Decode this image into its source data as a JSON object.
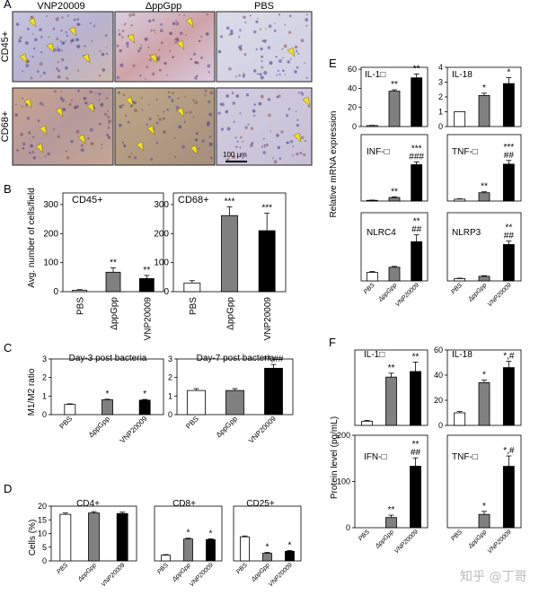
{
  "panel_letters": [
    "A",
    "B",
    "C",
    "D",
    "E",
    "F"
  ],
  "section_A": {
    "col_labels": [
      "VNP20009",
      "ΔppGpp",
      "PBS"
    ],
    "row_labels": [
      "CD45+",
      "CD68+"
    ],
    "scale_bar": "100 μm"
  },
  "shared": {
    "groups": [
      "PBS",
      "ΔppGpp",
      "VNP20009"
    ],
    "colors": {
      "PBS": "#ffffff",
      "ΔppGpp": "#808080",
      "VNP20009": "#000000"
    }
  },
  "y_labels": {
    "B": "Avg. number of cells/field",
    "C": "M1/M2 ratio",
    "D": "Cells (%)",
    "E": "Relative mRNA expression",
    "F": "Protein level (pg/mL)"
  },
  "chart_data": [
    {
      "id": "B1",
      "type": "bar",
      "title": "CD45+",
      "categories": [
        "PBS",
        "ΔppGpp",
        "VNP20009"
      ],
      "values": [
        5,
        67,
        45
      ],
      "errors": [
        2,
        15,
        11
      ],
      "sig": [
        "",
        "**",
        "**"
      ],
      "yticks": [
        0,
        100,
        200,
        300
      ],
      "ylim": [
        0,
        340
      ]
    },
    {
      "id": "B2",
      "type": "bar",
      "title": "CD68+",
      "categories": [
        "PBS",
        "ΔppGpp",
        "VNP20009"
      ],
      "values": [
        30,
        262,
        210
      ],
      "errors": [
        8,
        30,
        60
      ],
      "sig": [
        "",
        "***",
        "***"
      ],
      "yticks": [
        0,
        100,
        200,
        300
      ],
      "ylim": [
        0,
        340
      ]
    },
    {
      "id": "C1",
      "type": "bar",
      "title": "Day-3 post bacteria",
      "categories": [
        "PBS",
        "ΔppGpp",
        "VNP20009"
      ],
      "values": [
        0.55,
        0.8,
        0.78
      ],
      "errors": [
        0.03,
        0.03,
        0.04
      ],
      "sig": [
        "",
        "*",
        "*"
      ],
      "yticks": [
        0,
        1,
        2,
        3
      ],
      "ylim": [
        0,
        3
      ]
    },
    {
      "id": "C2",
      "type": "bar",
      "title": "Day-7 post bacteria",
      "categories": [
        "PBS",
        "ΔppGpp",
        "VNP20009"
      ],
      "values": [
        1.3,
        1.3,
        2.5
      ],
      "errors": [
        0.1,
        0.1,
        0.2
      ],
      "sig": [
        "",
        "",
        "**,##"
      ],
      "yticks": [
        0,
        1,
        2,
        3
      ],
      "ylim": [
        0,
        3
      ]
    },
    {
      "id": "D1",
      "type": "bar",
      "title": "CD4+",
      "categories": [
        "PBS",
        "ΔppGpp",
        "VNP20009"
      ],
      "values": [
        17,
        17.5,
        17.3
      ],
      "errors": [
        0.5,
        0.5,
        0.5
      ],
      "sig": [
        "",
        "",
        ""
      ],
      "yticks": [
        0,
        5,
        10,
        15,
        20
      ],
      "ylim": [
        0,
        20
      ]
    },
    {
      "id": "D2",
      "type": "bar",
      "title": "CD8+",
      "categories": [
        "PBS",
        "ΔppGpp",
        "VNP20009"
      ],
      "values": [
        2.1,
        8,
        7.8
      ],
      "errors": [
        0.2,
        0.3,
        0.3
      ],
      "sig": [
        "",
        "*",
        "*"
      ],
      "yticks": [],
      "ylim": [
        0,
        20
      ]
    },
    {
      "id": "D3",
      "type": "bar",
      "title": "CD25+",
      "categories": [
        "PBS",
        "ΔppGpp",
        "VNP20009"
      ],
      "values": [
        8.8,
        2.8,
        3.5
      ],
      "errors": [
        0.3,
        0.3,
        0.3
      ],
      "sig": [
        "",
        "*",
        "*"
      ],
      "yticks": [],
      "ylim": [
        0,
        20
      ]
    },
    {
      "id": "E1",
      "type": "bar",
      "title": "IL-1□",
      "categories": [
        "PBS",
        "ΔppGpp",
        "VNP20009"
      ],
      "values": [
        1,
        37,
        51
      ],
      "errors": [
        0.3,
        1.5,
        4
      ],
      "sig": [
        "",
        "**",
        "**"
      ],
      "yticks": [
        0,
        20,
        40,
        60
      ],
      "ylim": [
        0,
        62
      ]
    },
    {
      "id": "E2",
      "type": "bar",
      "title": "IL-18",
      "categories": [
        "PBS",
        "ΔppGpp",
        "VNP20009"
      ],
      "values": [
        1,
        2.1,
        2.9
      ],
      "errors": [
        0,
        0.15,
        0.4
      ],
      "sig": [
        "",
        "*",
        "*"
      ],
      "yticks": [
        0,
        1,
        2,
        3,
        4
      ],
      "ylim": [
        0,
        4
      ]
    },
    {
      "id": "E3",
      "type": "bar",
      "title": "INF-□",
      "categories": [
        "PBS",
        "ΔppGpp",
        "VNP20009"
      ],
      "values": [
        1,
        5,
        52
      ],
      "errors": [
        0.3,
        1,
        4
      ],
      "sig": [
        "",
        "**",
        "***\n###"
      ],
      "yticks": [],
      "ylim": [
        0,
        95
      ]
    },
    {
      "id": "E4",
      "type": "bar",
      "title": "TNF-□",
      "categories": [
        "PBS",
        "ΔppGpp",
        "VNP20009"
      ],
      "values": [
        1,
        4.5,
        20
      ],
      "errors": [
        0.2,
        0.5,
        2
      ],
      "sig": [
        "",
        "**",
        "***\n##"
      ],
      "yticks": [],
      "ylim": [
        0,
        36
      ]
    },
    {
      "id": "E5",
      "type": "bar",
      "title": "NLRC4",
      "categories": [
        "PBS",
        "ΔppGpp",
        "VNP20009"
      ],
      "values": [
        1,
        1.6,
        4.6
      ],
      "errors": [
        0.1,
        0.1,
        0.8
      ],
      "sig": [
        "",
        "",
        "**\n##"
      ],
      "yticks": [],
      "ylim": [
        0,
        8
      ]
    },
    {
      "id": "E6",
      "type": "bar",
      "title": "NLRP3",
      "categories": [
        "PBS",
        "ΔppGpp",
        "VNP20009"
      ],
      "values": [
        1,
        2,
        16
      ],
      "errors": [
        0.2,
        0.3,
        1.5
      ],
      "sig": [
        "",
        "",
        "**\n##"
      ],
      "yticks": [],
      "ylim": [
        0,
        30
      ]
    },
    {
      "id": "F1",
      "type": "bar",
      "title": "IL-1□",
      "categories": [
        "PBS",
        "ΔppGpp",
        "VNP20009"
      ],
      "values": [
        150,
        1730,
        1930
      ],
      "errors": [
        30,
        140,
        340
      ],
      "sig": [
        "",
        "**",
        "**"
      ],
      "yticks": [],
      "ylim": [
        0,
        2700
      ]
    },
    {
      "id": "F2",
      "type": "bar",
      "title": "IL-18",
      "categories": [
        "PBS",
        "ΔppGpp",
        "VNP20009"
      ],
      "values": [
        10,
        34,
        46
      ],
      "errors": [
        1,
        2,
        5
      ],
      "sig": [
        "",
        "*",
        "*,#"
      ],
      "yticks": [
        0,
        20,
        40,
        60
      ],
      "ylim": [
        0,
        60
      ]
    },
    {
      "id": "F3",
      "type": "bar",
      "title": "IFN-□",
      "categories": [
        "PBS",
        "ΔppGpp",
        "VNP20009"
      ],
      "values": [
        0,
        22,
        133
      ],
      "errors": [
        0,
        5,
        18
      ],
      "sig": [
        "",
        "**",
        "**\n##"
      ],
      "yticks": [
        0,
        100,
        200
      ],
      "ylim": [
        0,
        200
      ]
    },
    {
      "id": "F4",
      "type": "bar",
      "title": "TNF-□",
      "categories": [
        "PBS",
        "ΔppGpp",
        "VNP20009"
      ],
      "values": [
        0,
        18,
        83
      ],
      "errors": [
        0,
        4,
        14
      ],
      "sig": [
        "",
        "*",
        "*,#"
      ],
      "yticks": [],
      "ylim": [
        0,
        125
      ]
    }
  ],
  "watermark": "知乎 @丁哥"
}
